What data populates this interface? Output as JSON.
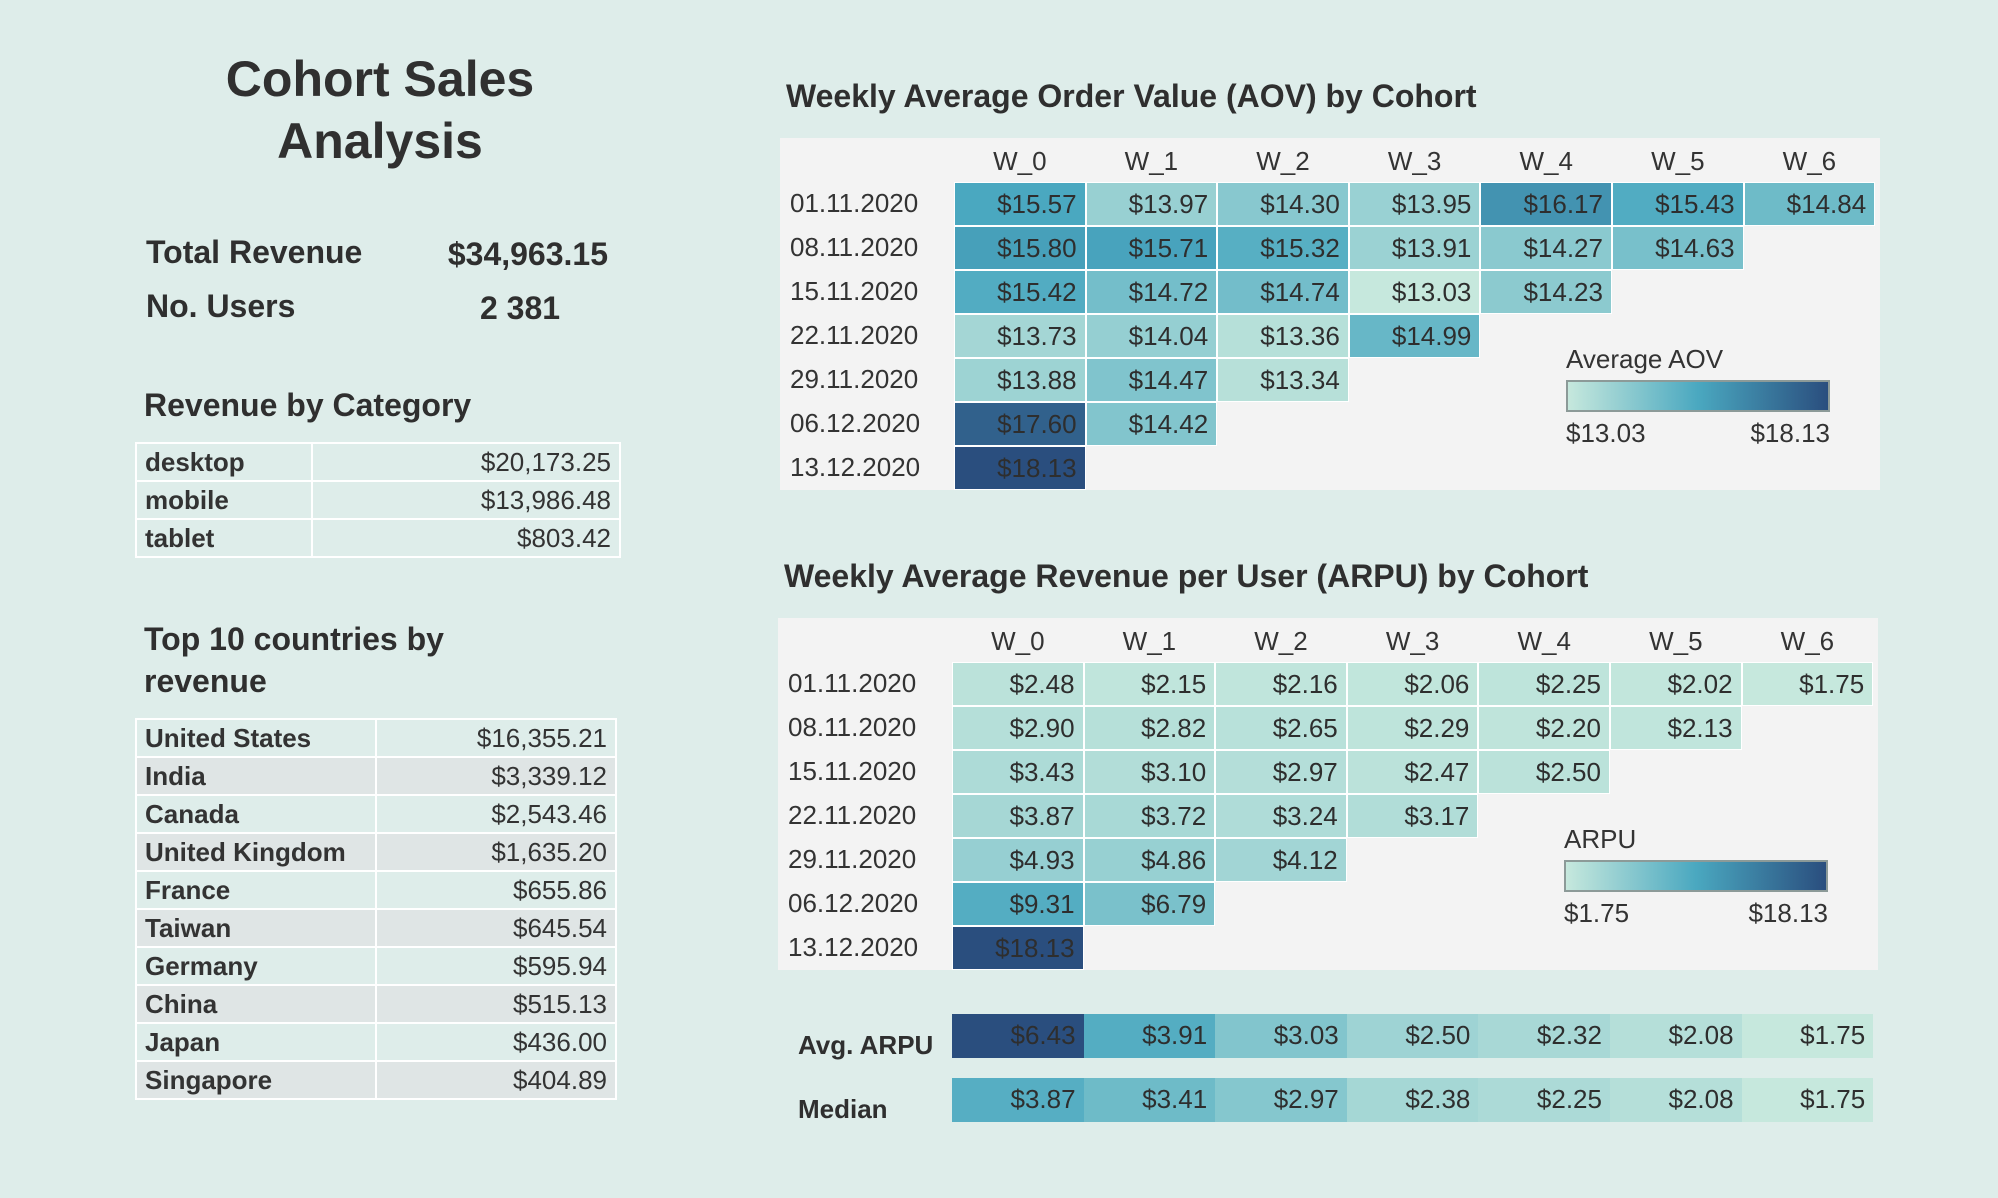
{
  "dashboard": {
    "title": "Cohort Sales Analysis",
    "kpis": [
      {
        "label": "Total Revenue",
        "value": "$34,963.15"
      },
      {
        "label": "No. Users",
        "value": "2 381"
      }
    ]
  },
  "revenue_by_category": {
    "title": "Revenue by Category",
    "rows": [
      {
        "label": "desktop",
        "value": "$20,173.25"
      },
      {
        "label": "mobile",
        "value": "$13,986.48"
      },
      {
        "label": "tablet",
        "value": "$803.42"
      }
    ]
  },
  "top_countries": {
    "title": "Top 10 countries by revenue",
    "rows": [
      {
        "label": "United States",
        "value": "$16,355.21"
      },
      {
        "label": "India",
        "value": "$3,339.12"
      },
      {
        "label": "Canada",
        "value": "$2,543.46"
      },
      {
        "label": "United Kingdom",
        "value": "$1,635.20"
      },
      {
        "label": "France",
        "value": "$655.86"
      },
      {
        "label": "Taiwan",
        "value": "$645.54"
      },
      {
        "label": "Germany",
        "value": "$595.94"
      },
      {
        "label": "China",
        "value": "$515.13"
      },
      {
        "label": "Japan",
        "value": "$436.00"
      },
      {
        "label": "Singapore",
        "value": "$404.89"
      }
    ]
  },
  "aov_heatmap": {
    "title": "Weekly Average Order Value (AOV) by Cohort",
    "columns": [
      "W_0",
      "W_1",
      "W_2",
      "W_3",
      "W_4",
      "W_5",
      "W_6"
    ],
    "rows": [
      {
        "cohort": "01.11.2020",
        "values": [
          "$15.57",
          "$13.97",
          "$14.30",
          "$13.95",
          "$16.17",
          "$15.43",
          "$14.84"
        ]
      },
      {
        "cohort": "08.11.2020",
        "values": [
          "$15.80",
          "$15.71",
          "$15.32",
          "$13.91",
          "$14.27",
          "$14.63"
        ]
      },
      {
        "cohort": "15.11.2020",
        "values": [
          "$15.42",
          "$14.72",
          "$14.74",
          "$13.03",
          "$14.23"
        ]
      },
      {
        "cohort": "22.11.2020",
        "values": [
          "$13.73",
          "$14.04",
          "$13.36",
          "$14.99"
        ]
      },
      {
        "cohort": "29.11.2020",
        "values": [
          "$13.88",
          "$14.47",
          "$13.34"
        ]
      },
      {
        "cohort": "06.12.2020",
        "values": [
          "$17.60",
          "$14.42"
        ]
      },
      {
        "cohort": "13.12.2020",
        "values": [
          "$18.13"
        ]
      }
    ],
    "legend": {
      "title": "Average AOV",
      "min_label": "$13.03",
      "max_label": "$18.13",
      "min": 13.03,
      "max": 18.13
    }
  },
  "arpu_heatmap": {
    "title": "Weekly Average Revenue per User (ARPU) by Cohort",
    "columns": [
      "W_0",
      "W_1",
      "W_2",
      "W_3",
      "W_4",
      "W_5",
      "W_6"
    ],
    "rows": [
      {
        "cohort": "01.11.2020",
        "values": [
          "$2.48",
          "$2.15",
          "$2.16",
          "$2.06",
          "$2.25",
          "$2.02",
          "$1.75"
        ]
      },
      {
        "cohort": "08.11.2020",
        "values": [
          "$2.90",
          "$2.82",
          "$2.65",
          "$2.29",
          "$2.20",
          "$2.13"
        ]
      },
      {
        "cohort": "15.11.2020",
        "values": [
          "$3.43",
          "$3.10",
          "$2.97",
          "$2.47",
          "$2.50"
        ]
      },
      {
        "cohort": "22.11.2020",
        "values": [
          "$3.87",
          "$3.72",
          "$3.24",
          "$3.17"
        ]
      },
      {
        "cohort": "29.11.2020",
        "values": [
          "$4.93",
          "$4.86",
          "$4.12"
        ]
      },
      {
        "cohort": "06.12.2020",
        "values": [
          "$9.31",
          "$6.79"
        ]
      },
      {
        "cohort": "13.12.2020",
        "values": [
          "$18.13"
        ]
      }
    ],
    "legend": {
      "title": "ARPU",
      "min_label": "$1.75",
      "max_label": "$18.13",
      "min": 1.75,
      "max": 18.13
    }
  },
  "summary": {
    "rows": [
      {
        "label": "Avg. ARPU",
        "values": [
          "$6.43",
          "$3.91",
          "$3.03",
          "$2.50",
          "$2.32",
          "$2.08",
          "$1.75"
        ]
      },
      {
        "label": "Median",
        "values": [
          "$3.87",
          "$3.41",
          "$2.97",
          "$2.38",
          "$2.25",
          "$2.08",
          "$1.75"
        ]
      }
    ]
  },
  "colors": {
    "background": "#deedea",
    "panel": "#f3f3f3",
    "scale_low": "#c6e8dd",
    "scale_mid": "#4aa8c0",
    "scale_high": "#2a4e7e"
  }
}
